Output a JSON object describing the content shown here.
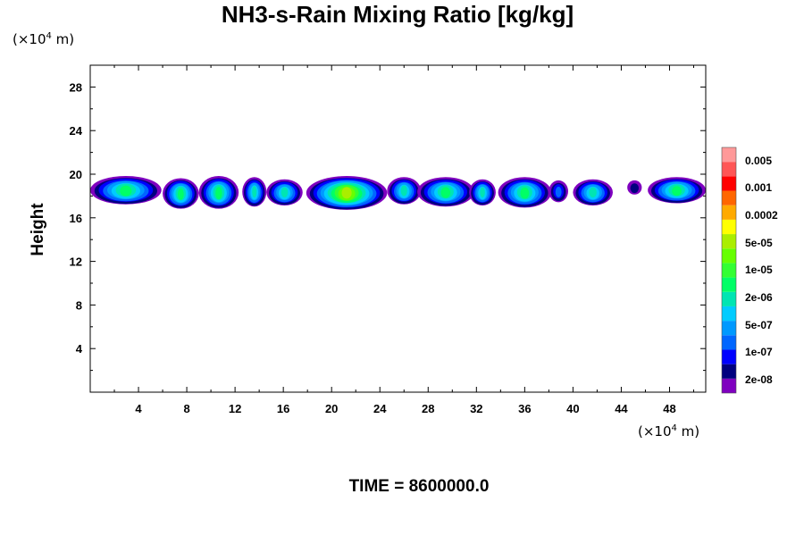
{
  "chart_data": {
    "type": "contour",
    "title": "NH3-s-Rain Mixing Ratio [kg/kg]",
    "ylabel": "Height",
    "x_unit": {
      "prefix": "(×10",
      "exp": "4",
      "suffix": " m)"
    },
    "y_unit": {
      "prefix": "(×10",
      "exp": "4",
      "suffix": " m)"
    },
    "xlim": [
      0,
      51
    ],
    "ylim": [
      0,
      30
    ],
    "x_ticks": [
      4,
      8,
      12,
      16,
      20,
      24,
      28,
      32,
      36,
      40,
      44,
      48
    ],
    "x_tick_labels": [
      "4",
      "8",
      "12",
      "16",
      "20",
      "24",
      "28",
      "32",
      "36",
      "40",
      "44",
      "48"
    ],
    "y_ticks": [
      4,
      8,
      12,
      16,
      20,
      24,
      28
    ],
    "y_tick_labels": [
      "4",
      "8",
      "12",
      "16",
      "20",
      "24",
      "28"
    ],
    "y_minor_ticks": [
      2,
      6,
      10,
      14,
      18,
      22,
      26
    ],
    "layer": {
      "y_bottom": 16.8,
      "y_top": 19.9
    },
    "cells": [
      {
        "x_start": 0.0,
        "x_end": 5.9,
        "y_bottom": 17.2,
        "y_top": 19.8,
        "peak": 7
      },
      {
        "x_start": 6.0,
        "x_end": 9.0,
        "y_bottom": 16.8,
        "y_top": 19.6,
        "peak": 7
      },
      {
        "x_start": 9.0,
        "x_end": 12.3,
        "y_bottom": 16.8,
        "y_top": 19.8,
        "peak": 7
      },
      {
        "x_start": 12.6,
        "x_end": 14.6,
        "y_bottom": 17.0,
        "y_top": 19.7,
        "peak": 6
      },
      {
        "x_start": 14.6,
        "x_end": 17.6,
        "y_bottom": 17.1,
        "y_top": 19.5,
        "peak": 6
      },
      {
        "x_start": 17.9,
        "x_end": 24.6,
        "y_bottom": 16.7,
        "y_top": 19.8,
        "peak": 10
      },
      {
        "x_start": 24.6,
        "x_end": 27.4,
        "y_bottom": 17.2,
        "y_top": 19.7,
        "peak": 6
      },
      {
        "x_start": 27.1,
        "x_end": 31.8,
        "y_bottom": 17.0,
        "y_top": 19.7,
        "peak": 7
      },
      {
        "x_start": 31.4,
        "x_end": 33.6,
        "y_bottom": 17.1,
        "y_top": 19.5,
        "peak": 6
      },
      {
        "x_start": 33.8,
        "x_end": 38.2,
        "y_bottom": 16.9,
        "y_top": 19.7,
        "peak": 7
      },
      {
        "x_start": 38.0,
        "x_end": 39.6,
        "y_bottom": 17.4,
        "y_top": 19.4,
        "peak": 3
      },
      {
        "x_start": 40.0,
        "x_end": 43.3,
        "y_bottom": 17.1,
        "y_top": 19.5,
        "peak": 6
      },
      {
        "x_start": 44.5,
        "x_end": 45.7,
        "y_bottom": 18.1,
        "y_top": 19.4,
        "peak": 1
      },
      {
        "x_start": 46.2,
        "x_end": 51.0,
        "y_bottom": 17.3,
        "y_top": 19.7,
        "peak": 7
      }
    ],
    "colorbar": {
      "labels": [
        "0.005",
        "0.001",
        "0.0002",
        "5e-05",
        "1e-05",
        "2e-06",
        "5e-07",
        "1e-07",
        "2e-08"
      ],
      "colors": [
        "#7f00bf",
        "#00007f",
        "#0000ff",
        "#0066ff",
        "#0099ff",
        "#00ccff",
        "#00e5b2",
        "#00ff66",
        "#33ff33",
        "#66ff00",
        "#aaee00",
        "#ffff00",
        "#ffaa00",
        "#ff6600",
        "#ff0000",
        "#ff5555",
        "#ff9999"
      ]
    },
    "time_label": "TIME = 8600000.0"
  }
}
